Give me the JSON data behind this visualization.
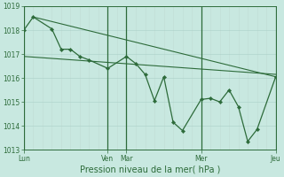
{
  "background_color": "#c8e8e0",
  "grid_color_h": "#b0d4cc",
  "grid_color_v_minor": "#c0dcd4",
  "vline_color": "#2d6b3a",
  "line_color": "#2d6b3a",
  "marker_color": "#2d6b3a",
  "xlabel": "Pression niveau de la mer( hPa )",
  "ylim": [
    1013,
    1019
  ],
  "yticks": [
    1013,
    1014,
    1015,
    1016,
    1017,
    1018,
    1019
  ],
  "xtick_labels": [
    "Lun",
    "Ven",
    "Mar",
    "Mer",
    "Jeu"
  ],
  "xtick_positions": [
    0,
    9,
    11,
    19,
    27
  ],
  "vline_positions": [
    0,
    9,
    11,
    19,
    27
  ],
  "series1_x": [
    0,
    1,
    3,
    4,
    5,
    6,
    7,
    9,
    11,
    12,
    13,
    14,
    15,
    16,
    17,
    19,
    20,
    21,
    22,
    23,
    24,
    25,
    27
  ],
  "series1_y": [
    1018.0,
    1018.55,
    1018.05,
    1017.2,
    1017.2,
    1016.9,
    1016.75,
    1016.4,
    1016.9,
    1016.6,
    1016.15,
    1015.05,
    1016.05,
    1014.15,
    1013.8,
    1015.1,
    1015.15,
    1015.0,
    1015.5,
    1014.8,
    1013.35,
    1013.85,
    1016.05
  ],
  "trend1_x": [
    0,
    27
  ],
  "trend1_y": [
    1016.9,
    1016.15
  ],
  "trend2_x": [
    1,
    27
  ],
  "trend2_y": [
    1018.55,
    1016.05
  ],
  "total_points": 28,
  "figsize": [
    3.2,
    2.0
  ],
  "dpi": 100
}
